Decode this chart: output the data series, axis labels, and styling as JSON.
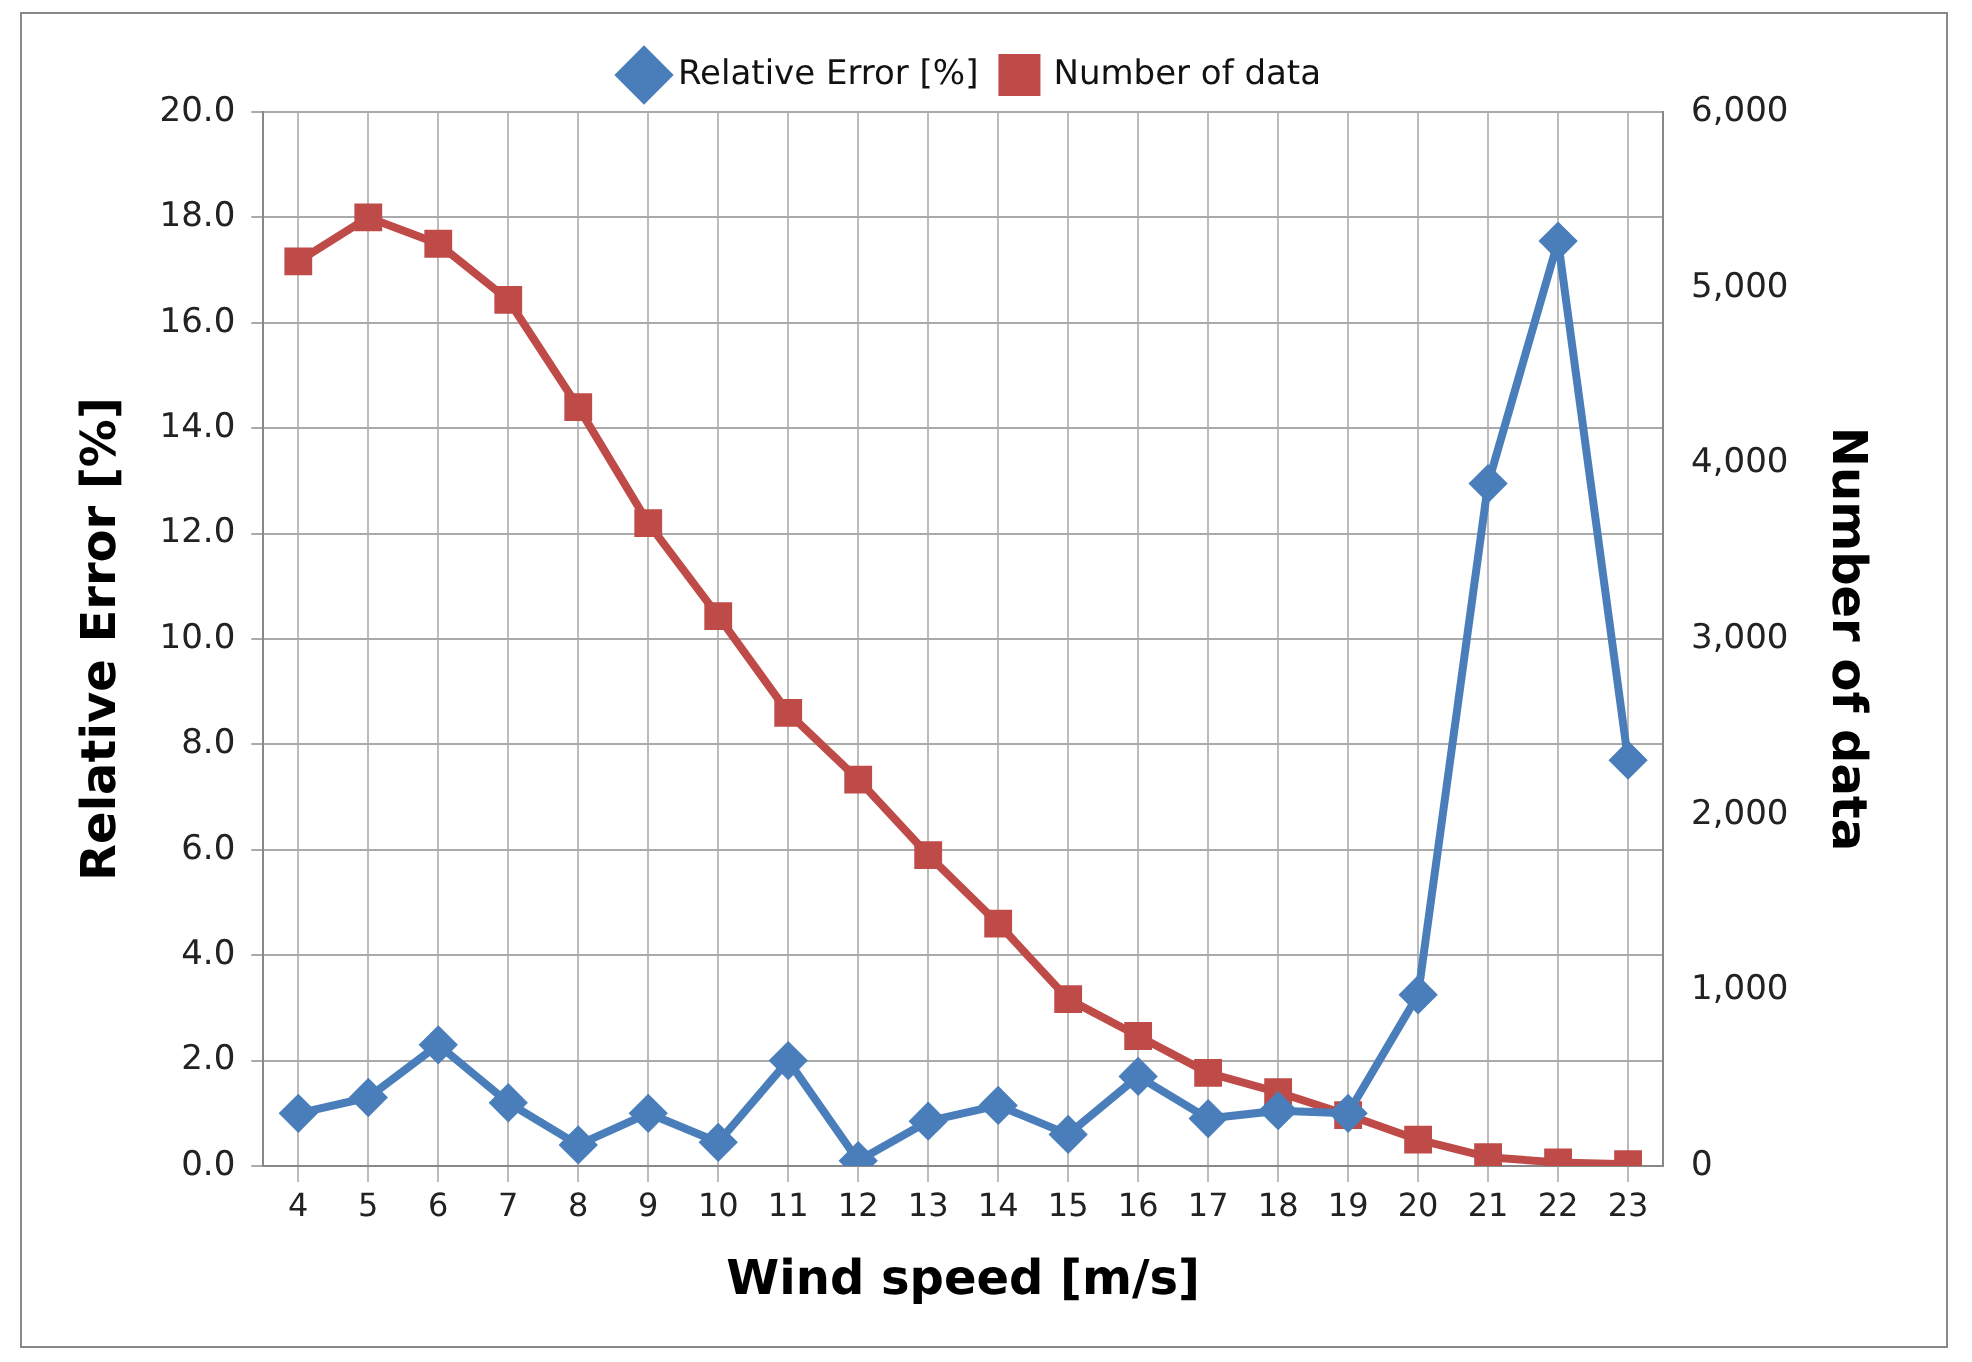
{
  "chart_data": {
    "type": "line",
    "xlabel": "Wind speed [m/s]",
    "ylabel": "Relative Error [%]",
    "y2label": "Number of data",
    "categories": [
      "4",
      "5",
      "6",
      "7",
      "8",
      "9",
      "10",
      "11",
      "12",
      "13",
      "14",
      "15",
      "16",
      "17",
      "18",
      "19",
      "20",
      "21",
      "22",
      "23"
    ],
    "series": [
      {
        "name": "Relative Error [%]",
        "color": "#4a7ebb",
        "marker": "diamond",
        "values": [
          1.0,
          1.3,
          2.3,
          1.2,
          0.4,
          1.0,
          0.45,
          2.0,
          0.1,
          0.85,
          1.15,
          0.6,
          1.7,
          0.9,
          1.05,
          1.0,
          3.25,
          12.95,
          17.55,
          7.7
        ]
      },
      {
        "name": "Number of data",
        "color": "#be4b48",
        "marker": "square",
        "axis": "y2",
        "values": [
          5150,
          5400,
          5250,
          4930,
          4320,
          3660,
          3130,
          2580,
          2200,
          1770,
          1380,
          950,
          740,
          530,
          420,
          290,
          150,
          50,
          20,
          10
        ]
      }
    ],
    "ylim": [
      0,
      20
    ],
    "yticks": [
      {
        "value": 0,
        "label": "0.0"
      },
      {
        "value": 2,
        "label": "2.0"
      },
      {
        "value": 4,
        "label": "4.0"
      },
      {
        "value": 6,
        "label": "6.0"
      },
      {
        "value": 8,
        "label": "8.0"
      },
      {
        "value": 10,
        "label": "10.0"
      },
      {
        "value": 12,
        "label": "12.0"
      },
      {
        "value": 14,
        "label": "14.0"
      },
      {
        "value": 16,
        "label": "16.0"
      },
      {
        "value": 18,
        "label": "18.0"
      },
      {
        "value": 20,
        "label": "20.0"
      }
    ],
    "y2lim": [
      0,
      6000
    ],
    "y2ticks": [
      0,
      {
        "value": 1000,
        "label": "1,000"
      },
      {
        "value": 2000,
        "label": "2,000"
      },
      {
        "value": 3000,
        "label": "3,000"
      },
      {
        "value": 4000,
        "label": "4,000"
      },
      {
        "value": 5000,
        "label": "5,000"
      },
      {
        "value": 6000,
        "label": "6,000"
      }
    ],
    "grid": true,
    "legend": "top",
    "line_style": "solid"
  }
}
